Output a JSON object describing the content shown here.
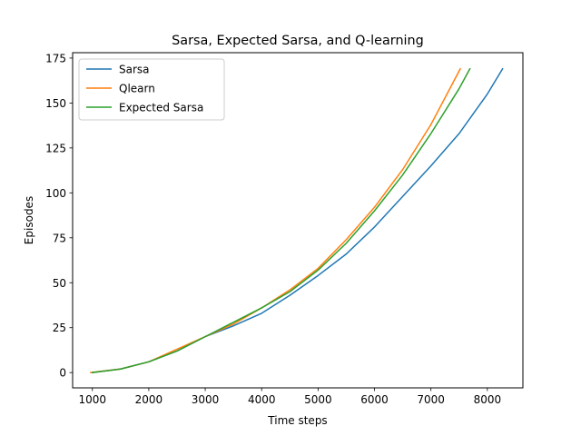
{
  "chart_data": {
    "type": "line",
    "title": "Sarsa, Expected Sarsa, and Q-learning",
    "xlabel": "Time steps",
    "ylabel": "Episodes",
    "xlim": [
      650,
      8630
    ],
    "ylim": [
      -8.5,
      178
    ],
    "xticks": [
      1000,
      2000,
      3000,
      4000,
      5000,
      6000,
      7000,
      8000
    ],
    "yticks": [
      0,
      25,
      50,
      75,
      100,
      125,
      150,
      175
    ],
    "grid": false,
    "legend": "top-left",
    "series": [
      {
        "name": "Sarsa",
        "color": "#1f77b4",
        "x": [
          1000,
          1500,
          2000,
          2500,
          3000,
          3500,
          4000,
          4500,
          5000,
          5500,
          6000,
          6500,
          7000,
          7500,
          8000,
          8270
        ],
        "y": [
          0,
          2,
          6,
          12,
          20,
          26,
          33,
          43,
          54,
          66,
          81,
          98,
          115,
          133,
          155,
          169
        ]
      },
      {
        "name": "Qlearn",
        "color": "#ff7f0e",
        "x": [
          970,
          1500,
          2000,
          2500,
          3000,
          3500,
          4000,
          4500,
          5000,
          5500,
          6000,
          6500,
          7000,
          7520
        ],
        "y": [
          0,
          2,
          6,
          13,
          20,
          27,
          36,
          46,
          58,
          74,
          92,
          113,
          138,
          169
        ]
      },
      {
        "name": "Expected Sarsa",
        "color": "#2ca02c",
        "x": [
          1000,
          1500,
          2000,
          2500,
          3000,
          3500,
          4000,
          4500,
          5000,
          5500,
          6000,
          6500,
          7000,
          7500,
          7690
        ],
        "y": [
          0,
          2,
          6,
          12,
          20,
          28,
          36,
          45,
          57,
          72,
          90,
          110,
          133,
          158,
          169
        ]
      }
    ]
  }
}
